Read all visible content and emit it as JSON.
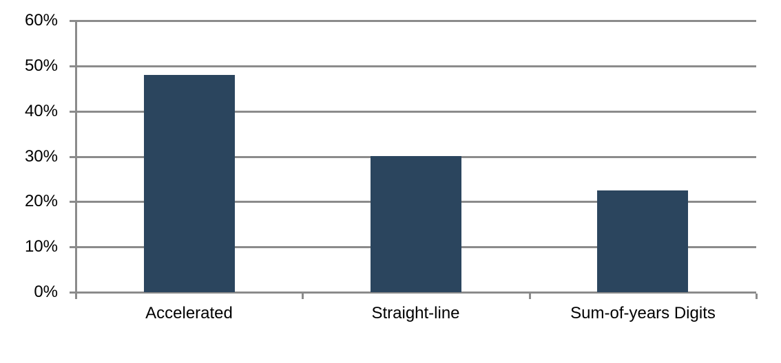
{
  "chart_data": {
    "type": "bar",
    "categories": [
      "Accelerated",
      "Straight-line",
      "Sum-of-years Digits"
    ],
    "values": [
      48,
      30,
      22.5
    ],
    "title": "",
    "xlabel": "",
    "ylabel": "",
    "ylim": [
      0,
      60
    ],
    "y_tick_step": 10,
    "y_ticks": [
      "0%",
      "10%",
      "20%",
      "30%",
      "40%",
      "50%",
      "60%"
    ],
    "grid": true,
    "legend_position": "none",
    "colors": {
      "bar": "#2B455E",
      "grid": "#8B8B8B",
      "axis": "#8B8B8B",
      "text": "#000000",
      "background": "#FFFFFF"
    }
  }
}
